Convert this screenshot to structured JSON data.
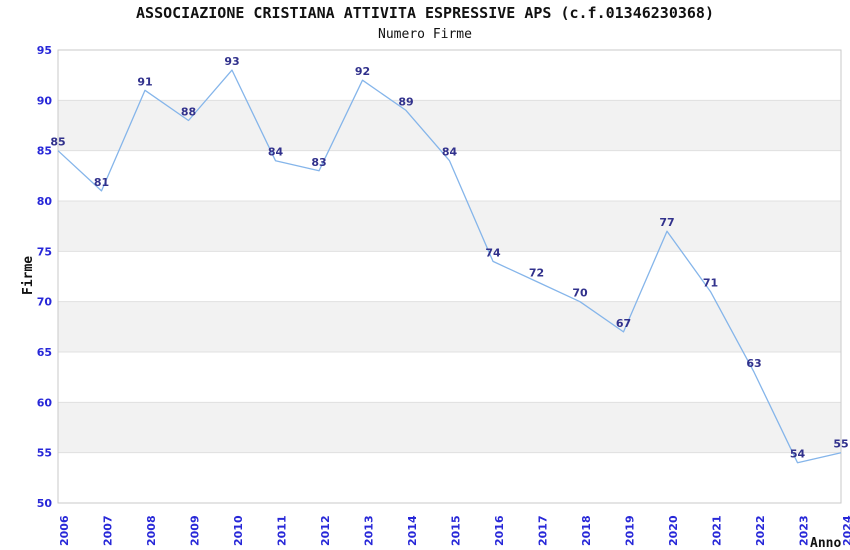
{
  "header": {
    "title": "ASSOCIAZIONE CRISTIANA ATTIVITA ESPRESSIVE APS (c.f.01346230368)",
    "subtitle": "Numero Firme"
  },
  "chart_data": {
    "type": "line",
    "title": "ASSOCIAZIONE CRISTIANA ATTIVITA ESPRESSIVE APS (c.f.01346230368)",
    "subtitle": "Numero Firme",
    "xlabel": "Anno",
    "ylabel": "Firme",
    "categories": [
      "2006",
      "2007",
      "2008",
      "2009",
      "2010",
      "2011",
      "2012",
      "2013",
      "2014",
      "2015",
      "2016",
      "2017",
      "2018",
      "2019",
      "2020",
      "2021",
      "2022",
      "2023",
      "2024"
    ],
    "values": [
      85,
      81,
      91,
      88,
      93,
      84,
      83,
      92,
      89,
      84,
      74,
      72,
      70,
      67,
      77,
      71,
      63,
      54,
      55
    ],
    "data_labels_shown": true,
    "ylim": [
      50,
      95
    ],
    "ytick_step": 5,
    "yticks": [
      50,
      55,
      60,
      65,
      70,
      75,
      80,
      85,
      90,
      95
    ],
    "grid": true,
    "alternating_bands": true,
    "legend": "none",
    "colors": {
      "line": "#85b5ea",
      "data_label": "#31318c",
      "tick_label": "#2727d8",
      "band": "#f2f2f2",
      "gridline": "#e0e0e0",
      "border": "#c9c9c9",
      "text": "#111111",
      "background": "#ffffff"
    }
  }
}
